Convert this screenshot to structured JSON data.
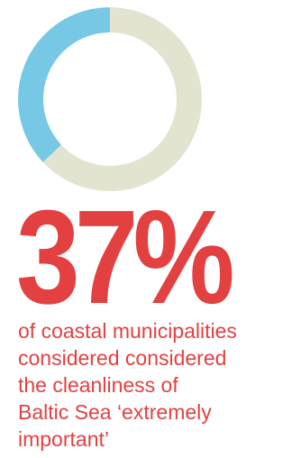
{
  "chart_data": {
    "type": "pie",
    "style": "donut",
    "slices": [
      {
        "label": "",
        "value": 37,
        "color": "#76c8e5"
      },
      {
        "label": "",
        "value": 63,
        "color": "#e2e4cf"
      }
    ],
    "title": "",
    "legend": "none"
  },
  "headline": {
    "value": "37%",
    "color": "#e34141"
  },
  "caption": {
    "color": "#e34141",
    "lines": [
      "of coastal municipalities",
      "considered considered",
      "the cleanliness of",
      "Baltic Sea ‘extremely",
      "important’"
    ]
  }
}
